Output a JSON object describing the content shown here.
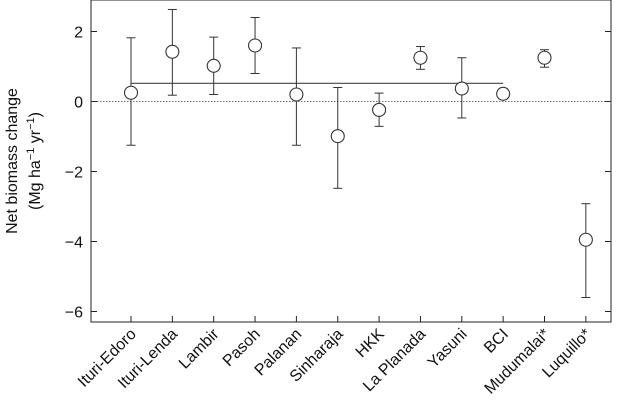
{
  "chart_data": {
    "type": "scatter",
    "ylabel_line1": "Net biomass change",
    "ylabel_line2_prefix": "(Mg ha",
    "ylabel_line2_sup1": "−1",
    "ylabel_line2_mid": " yr",
    "ylabel_line2_sup2": "−1",
    "ylabel_line2_suffix": ")",
    "ylim": [
      -6.3,
      2.9
    ],
    "yticks": [
      2,
      0,
      -2,
      -4,
      -6
    ],
    "ytick_labels": [
      "2",
      "0",
      "−2",
      "−4",
      "−6"
    ],
    "categories": [
      "Ituri-Edoro",
      "Ituri-Lenda",
      "Lambir",
      "Pasoh",
      "Palanan",
      "Sinharaja",
      "HKK",
      "La Planada",
      "Yasuni",
      "BCI",
      "Mudumalai*",
      "Luquillo*"
    ],
    "values": [
      0.25,
      1.42,
      1.02,
      1.6,
      0.2,
      -0.99,
      -0.24,
      1.25,
      0.37,
      0.22,
      1.25,
      -3.95
    ],
    "err_upper": [
      1.82,
      2.63,
      1.84,
      2.4,
      1.53,
      0.4,
      0.24,
      1.57,
      1.25,
      0.37,
      1.48,
      -2.92
    ],
    "err_lower": [
      -1.25,
      0.18,
      0.2,
      0.8,
      -1.25,
      -2.48,
      -0.71,
      0.92,
      -0.47,
      0.07,
      0.98,
      -5.6
    ],
    "mean_line": {
      "value": 0.52,
      "from_category": 0,
      "to_category": 9
    },
    "zero_reference": 0
  }
}
